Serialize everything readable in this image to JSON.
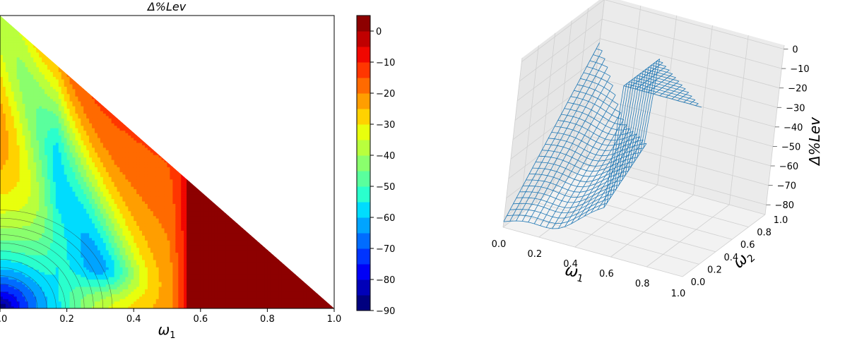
{
  "figure": {
    "left_title": "Δ%Lev",
    "left_xlabel_sym": "ω",
    "left_xlabel_sub": "1",
    "right_xlabel_sym": "ω",
    "right_xlabel_sub": "1",
    "right_ylabel_sym": "ω",
    "right_ylabel_sub": "2",
    "right_zlabel": "Δ%Lev"
  },
  "chart_data": [
    {
      "type": "heatmap",
      "subtype": "filled-contour",
      "title": "Δ%Lev",
      "xlabel": "ω1",
      "xlim": [
        0.0,
        1.0
      ],
      "x_ticks": [
        "0.0",
        "0.2",
        "0.4",
        "0.6",
        "0.8",
        "1.0"
      ],
      "domain": "triangle w1 + w2 <= 1",
      "colormap": "jet",
      "colorbar": {
        "ticks": [
          "0",
          "−10",
          "−20",
          "−30",
          "−40",
          "−50",
          "−60",
          "−70",
          "−80",
          "−90"
        ],
        "tick_values": [
          0,
          -10,
          -20,
          -30,
          -40,
          -50,
          -60,
          -70,
          -80,
          -90
        ],
        "range": [
          -90,
          5
        ],
        "levels": [
          -90,
          -85,
          -80,
          -75,
          -70,
          -65,
          -60,
          -55,
          -50,
          -45,
          -40,
          -35,
          -30,
          -25,
          -20,
          -15,
          -10,
          -5,
          0,
          5
        ],
        "colors": [
          "#00007f",
          "#0000b8",
          "#0000f6",
          "#0034ff",
          "#006cff",
          "#00a4ff",
          "#00dcfe",
          "#2affcd",
          "#5aff9d",
          "#8aff6d",
          "#b9ff3d",
          "#e8ff0d",
          "#ffd200",
          "#ff9e00",
          "#ff6a00",
          "#ff3600",
          "#f10700",
          "#c00000",
          "#8d0000"
        ]
      },
      "regions": [
        {
          "value": 2.5,
          "desc": "dark red zone, w1 > ~0.52 up to diagonal"
        },
        {
          "value": -7,
          "desc": "red band near left top and along diagonal"
        },
        {
          "value": -90,
          "desc": "minimum at origin (w1=0, w2=0)"
        }
      ]
    },
    {
      "type": "surface3d",
      "xlabel": "ω1",
      "ylabel": "ω2",
      "zlabel": "Δ%Lev",
      "x_ticks": [
        "0.0",
        "0.2",
        "0.4",
        "0.6",
        "0.8",
        "1.0"
      ],
      "y_ticks": [
        "0.0",
        "0.2",
        "0.4",
        "0.6",
        "0.8",
        "1.0"
      ],
      "z_ticks": [
        "0",
        "−10",
        "−20",
        "−30",
        "−40",
        "−50",
        "−60",
        "−70",
        "−80"
      ],
      "z_range": [
        -85,
        2
      ],
      "color": "#1f77b4",
      "grid": true
    }
  ]
}
